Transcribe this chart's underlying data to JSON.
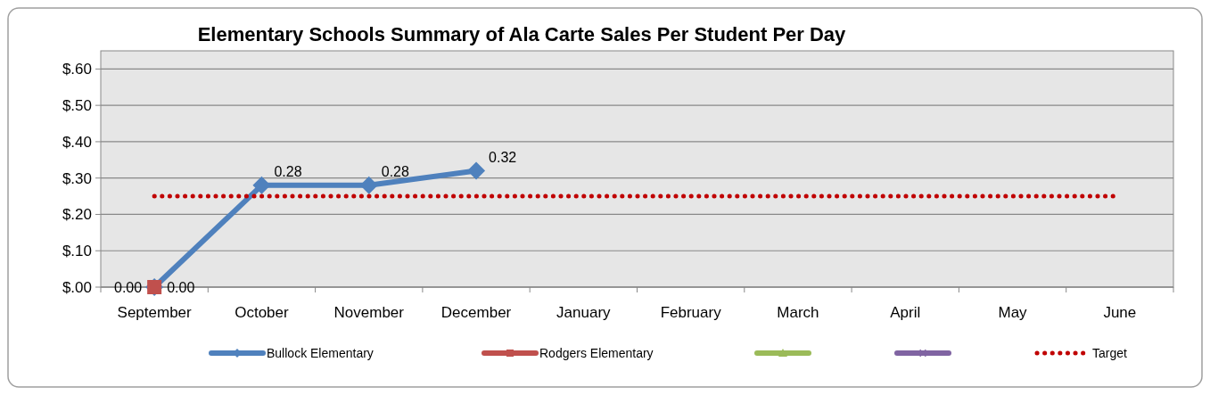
{
  "chart_data": {
    "type": "line",
    "title": "Elementary Schools Summary of Ala Carte Sales Per Student Per Day",
    "categories": [
      "September",
      "October",
      "November",
      "December",
      "January",
      "February",
      "March",
      "April",
      "May",
      "June"
    ],
    "series": [
      {
        "name": "Bullock Elementary",
        "color": "#4f81bd",
        "marker": "diamond",
        "values": [
          0.0,
          0.28,
          0.28,
          0.32,
          null,
          null,
          null,
          null,
          null,
          null
        ],
        "value_labels": [
          "0.00",
          "0.28",
          "0.28",
          "0.32",
          null,
          null,
          null,
          null,
          null,
          null
        ]
      },
      {
        "name": "Rodgers Elementary",
        "color": "#c0504d",
        "marker": "square",
        "values": [
          0.0,
          null,
          null,
          null,
          null,
          null,
          null,
          null,
          null,
          null
        ],
        "value_labels": [
          "0.00",
          null,
          null,
          null,
          null,
          null,
          null,
          null,
          null,
          null
        ]
      },
      {
        "color": "#9bbb59",
        "marker": "triangle",
        "values": [
          null,
          null,
          null,
          null,
          null,
          null,
          null,
          null,
          null,
          null
        ]
      },
      {
        "color": "#8064a2",
        "marker": "cross",
        "values": [
          null,
          null,
          null,
          null,
          null,
          null,
          null,
          null,
          null,
          null
        ]
      },
      {
        "name": "Target",
        "color": "#c00000",
        "marker": "none",
        "line_style": "dotted",
        "values": [
          0.25,
          0.25,
          0.25,
          0.25,
          0.25,
          0.25,
          0.25,
          0.25,
          0.25,
          0.25
        ]
      }
    ],
    "ylim": [
      0,
      0.65
    ],
    "yticks": [
      {
        "value": 0,
        "label": "$.00"
      },
      {
        "value": 0.1,
        "label": "$.10"
      },
      {
        "value": 0.2,
        "label": "$.20"
      },
      {
        "value": 0.3,
        "label": "$.30"
      },
      {
        "value": 0.4,
        "label": "$.40"
      },
      {
        "value": 0.5,
        "label": "$.50"
      },
      {
        "value": 0.6,
        "label": "$.60"
      }
    ],
    "grid": "y",
    "legend": "bottom"
  }
}
